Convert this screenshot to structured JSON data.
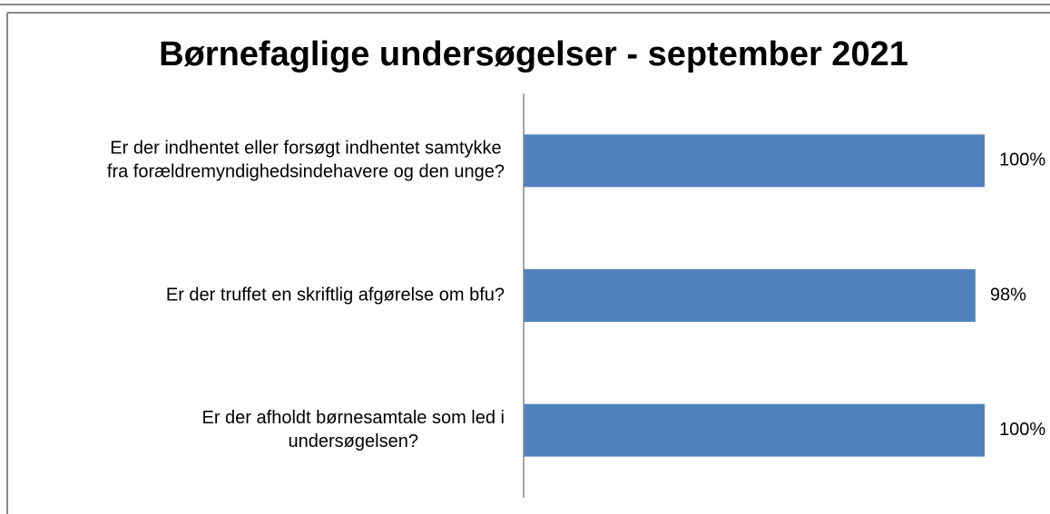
{
  "chart_data": {
    "type": "bar",
    "orientation": "horizontal",
    "title": "Børnefaglige undersøgelser - september 2021",
    "categories": [
      [
        "Er der indhentet eller forsøgt indhentet samtykke",
        "fra forældremyndighedsindehavere og den unge?"
      ],
      [
        "Er der truffet en skriftlig afgørelse om bfu?"
      ],
      [
        "Er der afholdt børnesamtale som led i",
        "undersøgelsen?"
      ]
    ],
    "values": [
      100,
      98,
      100
    ],
    "value_labels": [
      "100%",
      "98%",
      "100%"
    ],
    "color": "#4f81bd",
    "xlim": [
      0,
      100
    ]
  }
}
